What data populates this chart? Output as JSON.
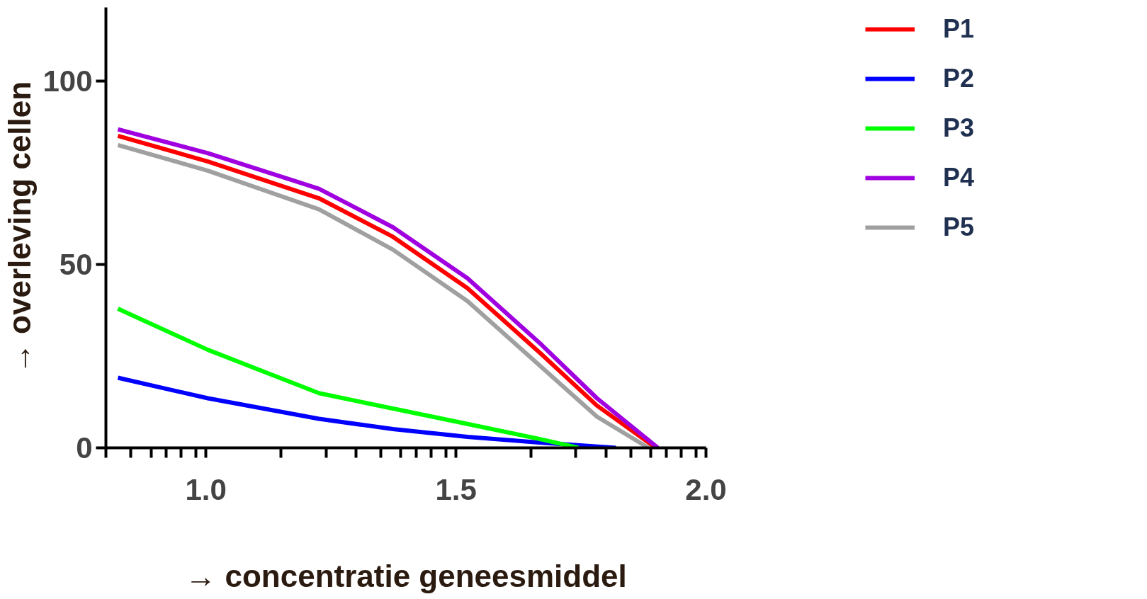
{
  "chart_data": {
    "type": "line",
    "xlabel": "→ concentratie geneesmiddel",
    "ylabel": "→ overleving cellen",
    "xlim": [
      0.8,
      2.0
    ],
    "ylim": [
      0,
      120
    ],
    "xticks": [
      {
        "value": 0.8,
        "label": null
      },
      {
        "value": 0.85,
        "label": null
      },
      {
        "value": 0.89,
        "label": null
      },
      {
        "value": 0.92,
        "label": null
      },
      {
        "value": 0.95,
        "label": null
      },
      {
        "value": 0.98,
        "label": null
      },
      {
        "value": 1.0,
        "label": "1.0"
      },
      {
        "value": 1.15,
        "label": null
      },
      {
        "value": 1.24,
        "label": null
      },
      {
        "value": 1.3,
        "label": null
      },
      {
        "value": 1.35,
        "label": null
      },
      {
        "value": 1.39,
        "label": null
      },
      {
        "value": 1.42,
        "label": null
      },
      {
        "value": 1.45,
        "label": null
      },
      {
        "value": 1.48,
        "label": null
      },
      {
        "value": 1.5,
        "label": "1.5"
      },
      {
        "value": 1.65,
        "label": null
      },
      {
        "value": 1.74,
        "label": null
      },
      {
        "value": 1.8,
        "label": null
      },
      {
        "value": 1.85,
        "label": null
      },
      {
        "value": 1.89,
        "label": null
      },
      {
        "value": 1.92,
        "label": null
      },
      {
        "value": 1.95,
        "label": null
      },
      {
        "value": 1.98,
        "label": null
      },
      {
        "value": 2.0,
        "label": "2.0"
      }
    ],
    "yticks": [
      0,
      50,
      100
    ],
    "grid": false,
    "legend": "top right",
    "marker": "none",
    "line_style": "solid",
    "series": [
      {
        "name": "P1",
        "color": "#ff0000",
        "x": [
          0.824,
          1.004,
          1.226,
          1.374,
          1.523,
          1.671,
          1.782,
          1.9
        ],
        "values": [
          85,
          78,
          68,
          57.5,
          43.5,
          25.5,
          11.5,
          0
        ]
      },
      {
        "name": "P2",
        "color": "#0000ff",
        "x": [
          0.824,
          1.004,
          1.226,
          1.374,
          1.523,
          1.671,
          1.82
        ],
        "values": [
          19.1,
          13.5,
          7.9,
          5.1,
          3,
          1.4,
          0
        ]
      },
      {
        "name": "P3",
        "color": "#00ff00",
        "x": [
          0.824,
          1.004,
          1.226,
          1.374,
          1.523,
          1.671,
          1.745
        ],
        "values": [
          37.9,
          26.7,
          14.9,
          10.7,
          6.5,
          2.3,
          0
        ]
      },
      {
        "name": "P4",
        "color": "#a000e0",
        "x": [
          0.824,
          1.004,
          1.226,
          1.374,
          1.523,
          1.671,
          1.782,
          1.904
        ],
        "values": [
          86.8,
          80.3,
          70.6,
          60.1,
          46.2,
          28.1,
          13.5,
          0
        ]
      },
      {
        "name": "P5",
        "color": "#a0a0a0",
        "x": [
          0.824,
          1.004,
          1.226,
          1.374,
          1.523,
          1.671,
          1.782,
          1.885
        ],
        "values": [
          82.5,
          75.5,
          65,
          54,
          40,
          22,
          8.5,
          0
        ]
      }
    ]
  }
}
